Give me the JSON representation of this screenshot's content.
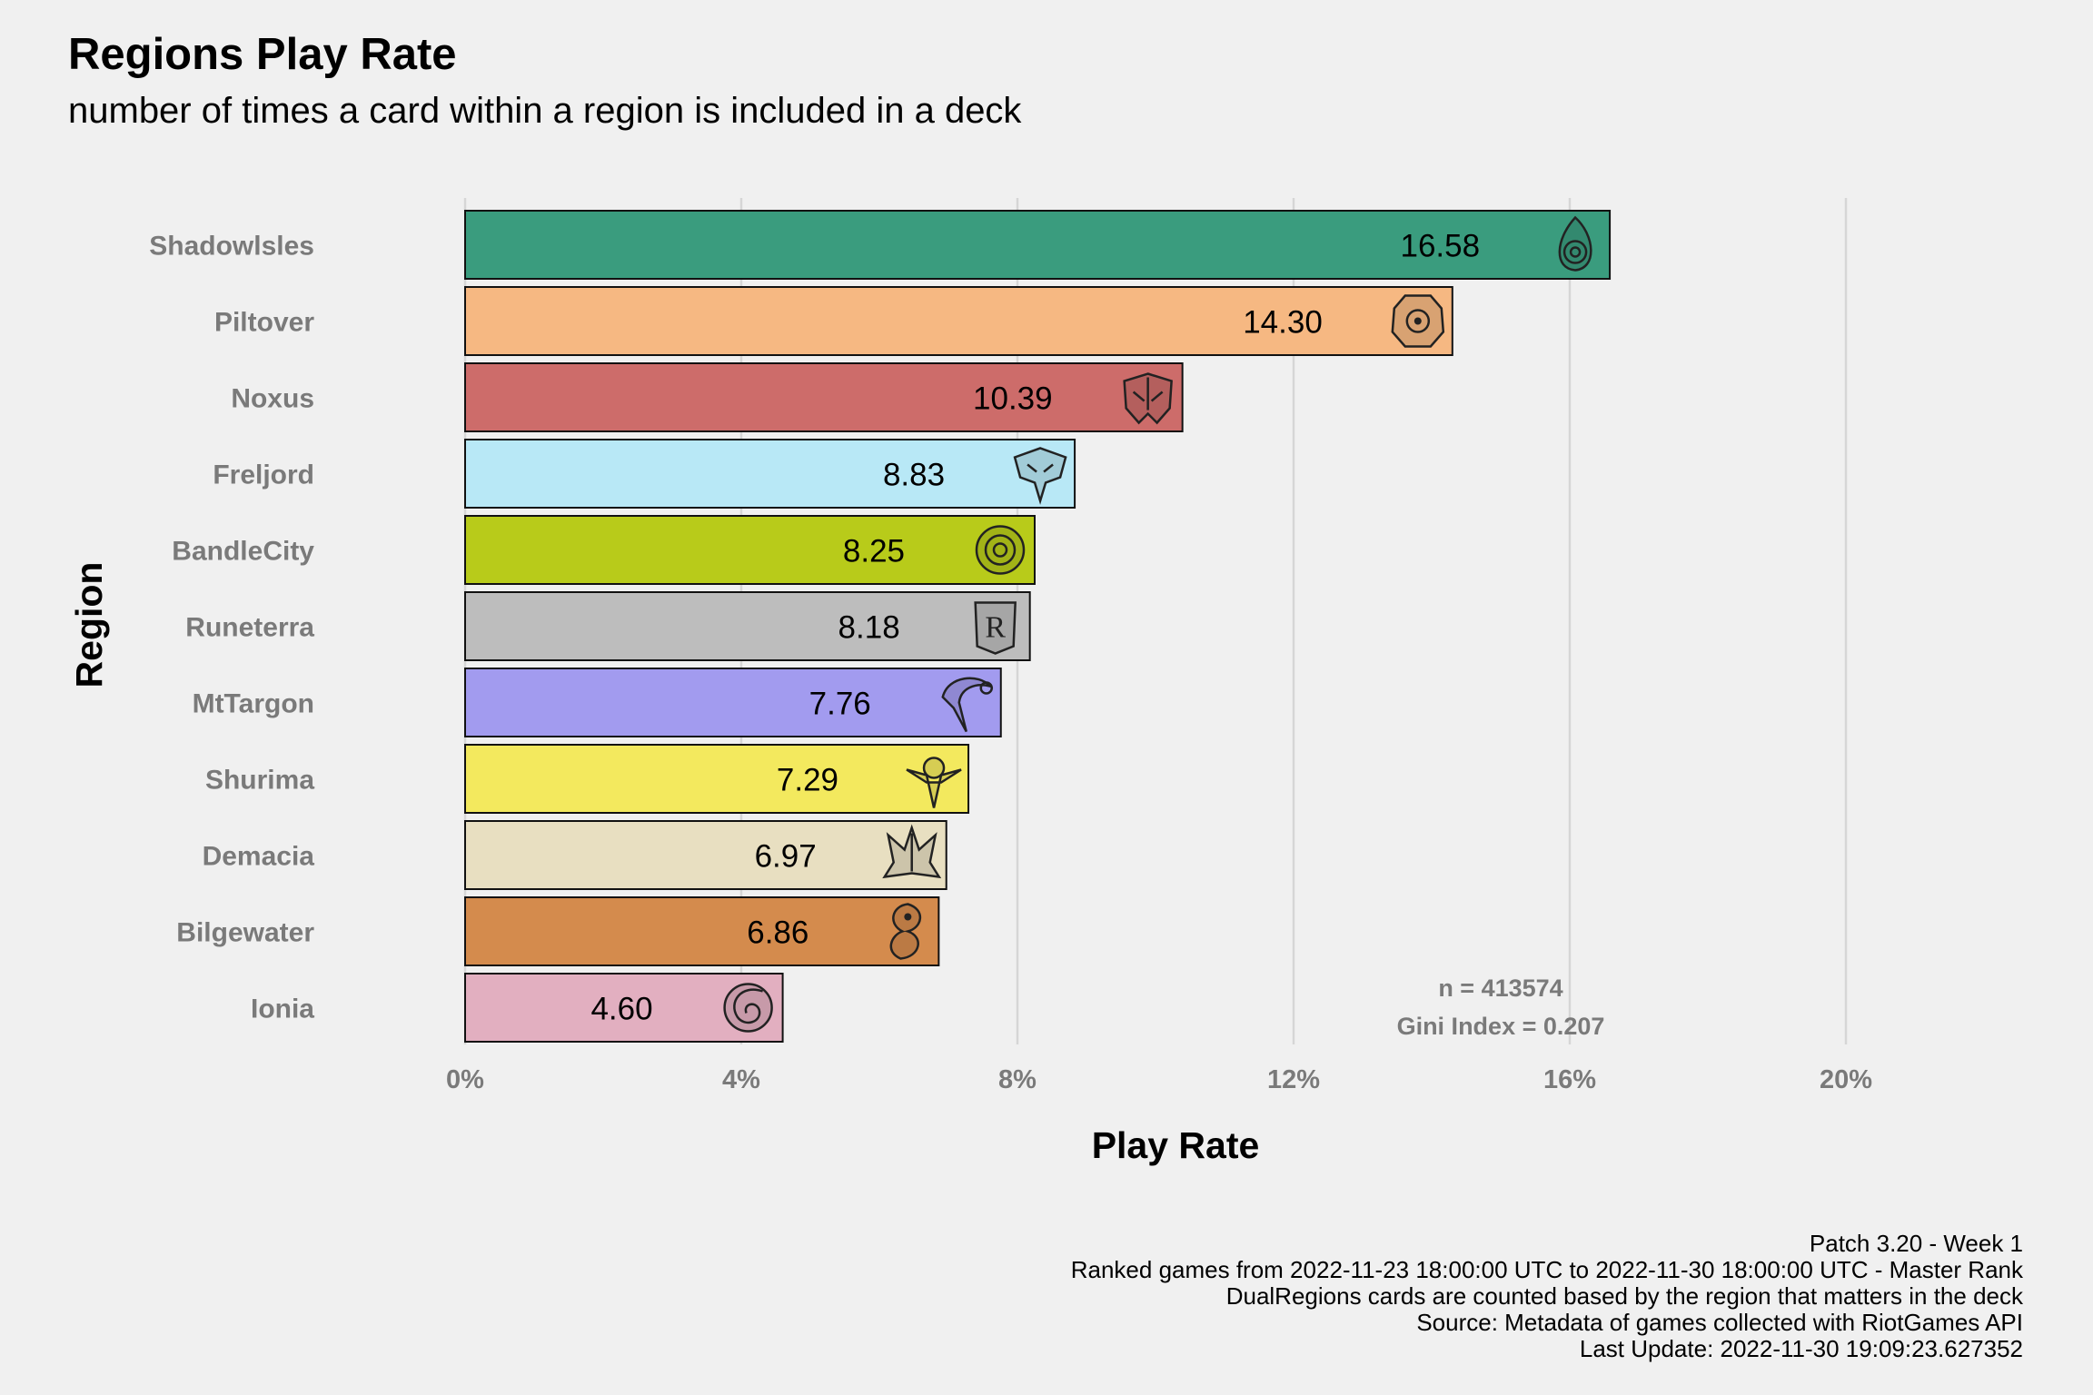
{
  "chart_data": {
    "type": "bar",
    "orientation": "horizontal",
    "title": "Regions Play Rate",
    "subtitle": "number of times a card within a region is included in a deck",
    "xlabel": "Play Rate",
    "ylabel": "Region",
    "xlim": [
      0,
      20
    ],
    "x_ticks": [
      "0%",
      "4%",
      "8%",
      "12%",
      "16%",
      "20%"
    ],
    "grid": "vertical major",
    "categories": [
      "Shadowlsles",
      "Piltover",
      "Noxus",
      "Freljord",
      "BandleCity",
      "Runeterra",
      "MtTargon",
      "Shurima",
      "Demacia",
      "Bilgewater",
      "Ionia"
    ],
    "values": [
      16.58,
      14.3,
      10.39,
      8.83,
      8.25,
      8.18,
      7.76,
      7.29,
      6.97,
      6.86,
      4.6
    ],
    "value_labels": [
      "16.58",
      "14.30",
      "10.39",
      "8.83",
      "8.25",
      "8.18",
      "7.76",
      "7.29",
      "6.97",
      "6.86",
      "4.60"
    ],
    "colors": [
      "#3a9c7e",
      "#f6b882",
      "#cd6c6a",
      "#b8e8f6",
      "#b8cb1a",
      "#bdbdbd",
      "#a29bef",
      "#f3e95e",
      "#e8dfc1",
      "#d48b4d",
      "#e2afc0"
    ],
    "icons": [
      "shadow-isles-icon",
      "piltover-icon",
      "noxus-icon",
      "freljord-icon",
      "bandle-city-icon",
      "runeterra-icon",
      "mt-targon-icon",
      "shurima-icon",
      "demacia-icon",
      "bilgewater-icon",
      "ionia-icon"
    ],
    "annotations": [
      "n = 413574",
      "Gini Index = 0.207"
    ]
  },
  "caption": [
    "Patch 3.20 - Week 1",
    "Ranked games from 2022-11-23 18:00:00 UTC to 2022-11-30 18:00:00 UTC - Master Rank",
    "DualRegions cards are counted based by the region that matters in the deck",
    "Source: Metadata of games collected with RiotGames API",
    "Last Update: 2022-11-30 19:09:23.627352"
  ]
}
